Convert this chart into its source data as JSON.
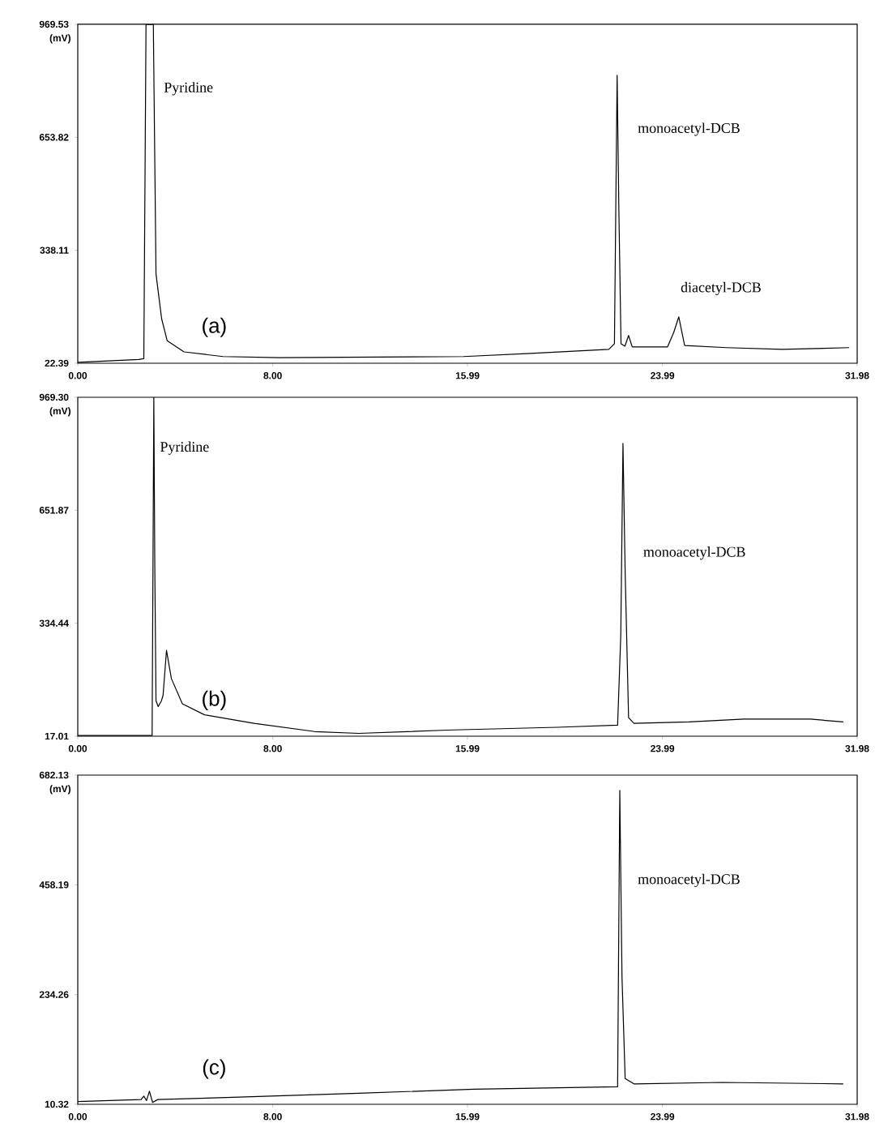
{
  "chart_data": [
    {
      "type": "line",
      "title": "(a)",
      "ylabel": "(mV)",
      "xlim": [
        0,
        31.98
      ],
      "ylim": [
        22.39,
        969.53
      ],
      "xticks": [
        {
          "value": 0,
          "label": "0.00"
        },
        {
          "value": 8,
          "label": "8.00"
        },
        {
          "value": 15.99,
          "label": "15.99"
        },
        {
          "value": 23.99,
          "label": "23.99"
        },
        {
          "value": 31.98,
          "label": "31.98"
        }
      ],
      "yticks": [
        {
          "value": 22.39,
          "label": "22.39"
        },
        {
          "value": 338.11,
          "label": "338.11"
        },
        {
          "value": 653.82,
          "label": "653.82"
        },
        {
          "value": 969.53,
          "label": "969.53"
        }
      ],
      "series": [
        {
          "color": "#000000",
          "x": [
            0,
            2.5,
            2.71,
            2.8,
            3.1,
            3.21,
            3.44,
            3.67,
            4.36,
            5.96,
            8.26,
            15.83,
            18.58,
            21.79,
            22.02,
            22.13,
            22.2,
            22.29,
            22.45,
            22.6,
            22.75,
            24.2,
            24.45,
            24.66,
            24.9,
            26.6,
            28.9,
            31.65
          ],
          "values": [
            25,
            33,
            35,
            969,
            969,
            272,
            147,
            85,
            54,
            41,
            38,
            41,
            50,
            61,
            77,
            827,
            460,
            77,
            70,
            100,
            68,
            68,
            108,
            152,
            72,
            66,
            61,
            66
          ]
        }
      ],
      "annotations": [
        "Pyridine",
        "monoacetyl-DCB",
        "diacetyl-DCB"
      ],
      "grid": false
    },
    {
      "type": "line",
      "title": "(b)",
      "ylabel": "(mV)",
      "xlim": [
        0,
        31.98
      ],
      "ylim": [
        17.01,
        969.3
      ],
      "xticks": [
        {
          "value": 0,
          "label": "0.00"
        },
        {
          "value": 8,
          "label": "8.00"
        },
        {
          "value": 15.99,
          "label": "15.99"
        },
        {
          "value": 23.99,
          "label": "23.99"
        },
        {
          "value": 31.98,
          "label": "31.98"
        }
      ],
      "yticks": [
        {
          "value": 17.01,
          "label": "17.01"
        },
        {
          "value": 334.44,
          "label": "334.44"
        },
        {
          "value": 651.87,
          "label": "651.87"
        },
        {
          "value": 969.3,
          "label": "969.30"
        }
      ],
      "series": [
        {
          "color": "#000000",
          "x": [
            0,
            3.05,
            3.12,
            3.16,
            3.21,
            3.3,
            3.43,
            3.5,
            3.64,
            3.84,
            4.29,
            5.2,
            7.23,
            9.72,
            11.53,
            15.14,
            19.66,
            22.15,
            22.28,
            22.37,
            22.46,
            22.6,
            22.82,
            25.08,
            27.34,
            30.06,
            31.41
          ],
          "values": [
            19,
            19,
            969,
            494,
            116,
            100,
            116,
            132,
            258,
            179,
            108,
            77,
            53,
            30,
            25,
            34,
            42,
            48,
            300,
            840,
            478,
            69,
            53,
            57,
            65,
            65,
            57
          ]
        }
      ],
      "annotations": [
        "Pyridine",
        "monoacetyl-DCB"
      ],
      "grid": false
    },
    {
      "type": "line",
      "title": "(c)",
      "ylabel": "(mV)",
      "xlim": [
        0,
        31.98
      ],
      "ylim": [
        10.32,
        682.13
      ],
      "xticks": [
        {
          "value": 0,
          "label": "0.00"
        },
        {
          "value": 8,
          "label": "8.00"
        },
        {
          "value": 15.99,
          "label": "15.99"
        },
        {
          "value": 23.99,
          "label": "23.99"
        },
        {
          "value": 31.98,
          "label": "31.98"
        }
      ],
      "yticks": [
        {
          "value": 10.32,
          "label": "10.32"
        },
        {
          "value": 234.26,
          "label": "234.26"
        },
        {
          "value": 458.19,
          "label": "458.19"
        },
        {
          "value": 682.13,
          "label": "682.13"
        }
      ],
      "series": [
        {
          "color": "#000000",
          "x": [
            0,
            2.6,
            2.71,
            2.82,
            2.94,
            3.07,
            3.28,
            6.1,
            11.53,
            16.27,
            22.15,
            22.24,
            22.33,
            22.46,
            22.82,
            26.44,
            31.41
          ],
          "values": [
            16,
            20,
            27,
            18,
            37,
            14,
            20,
            24,
            33,
            41,
            46,
            651,
            270,
            63,
            52,
            55,
            52
          ]
        }
      ],
      "annotations": [
        "monoacetyl-DCB"
      ],
      "grid": false
    }
  ]
}
